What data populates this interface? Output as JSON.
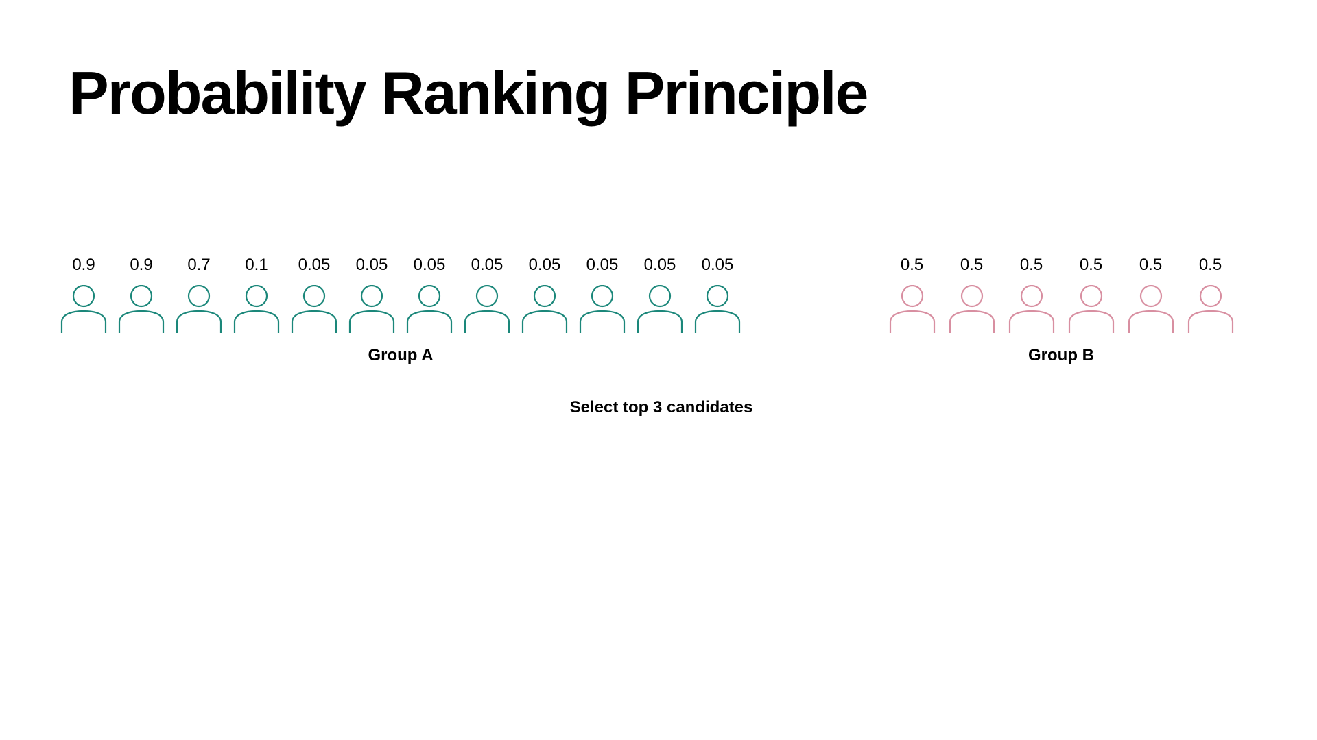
{
  "title": "Probability Ranking Principle",
  "caption": "Select top 3 candidates",
  "colors": {
    "group_a": "#1b877a",
    "group_b": "#d88fa1"
  },
  "icons": {
    "candidate": "person-icon"
  },
  "groups": [
    {
      "label": "Group A",
      "scores": [
        "0.9",
        "0.9",
        "0.7",
        "0.1",
        "0.05",
        "0.05",
        "0.05",
        "0.05",
        "0.05",
        "0.05",
        "0.05",
        "0.05"
      ]
    },
    {
      "label": "Group B",
      "scores": [
        "0.5",
        "0.5",
        "0.5",
        "0.5",
        "0.5",
        "0.5"
      ]
    }
  ]
}
